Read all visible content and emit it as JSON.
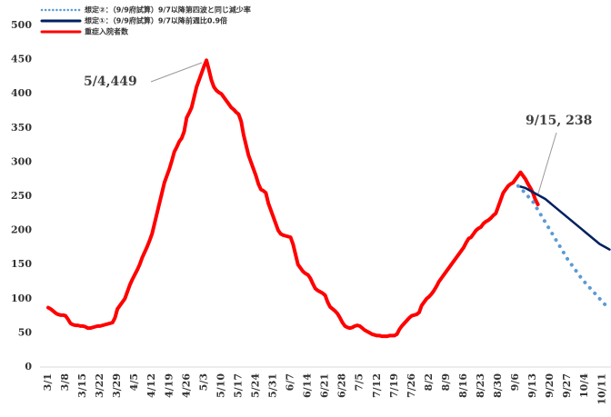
{
  "chart_data": {
    "type": "line",
    "categories": [
      "3/1",
      null,
      null,
      null,
      null,
      null,
      null,
      "3/8",
      null,
      null,
      null,
      null,
      null,
      null,
      "3/15",
      null,
      null,
      null,
      null,
      null,
      null,
      "3/22",
      null,
      null,
      null,
      null,
      null,
      null,
      "3/29",
      null,
      null,
      null,
      null,
      null,
      null,
      "4/5",
      null,
      null,
      null,
      null,
      null,
      null,
      "4/12",
      null,
      null,
      null,
      null,
      null,
      null,
      "4/19",
      null,
      null,
      null,
      null,
      null,
      null,
      "4/26",
      null,
      null,
      null,
      null,
      null,
      null,
      "5/3",
      null,
      null,
      null,
      null,
      null,
      null,
      "5/10",
      null,
      null,
      null,
      null,
      null,
      null,
      "5/17",
      null,
      null,
      null,
      null,
      null,
      null,
      "5/24",
      null,
      null,
      null,
      null,
      null,
      null,
      "5/31",
      null,
      null,
      null,
      null,
      null,
      null,
      "6/7",
      null,
      null,
      null,
      null,
      null,
      null,
      "6/14",
      null,
      null,
      null,
      null,
      null,
      null,
      "6/21",
      null,
      null,
      null,
      null,
      null,
      null,
      "6/28",
      null,
      null,
      null,
      null,
      null,
      null,
      "7/5",
      null,
      null,
      null,
      null,
      null,
      null,
      "7/12",
      null,
      null,
      null,
      null,
      null,
      null,
      "7/19",
      null,
      null,
      null,
      null,
      null,
      null,
      "7/26",
      null,
      null,
      null,
      null,
      null,
      null,
      "8/2",
      null,
      null,
      null,
      null,
      null,
      null,
      "8/9",
      null,
      null,
      null,
      null,
      null,
      null,
      "8/16",
      null,
      null,
      null,
      null,
      null,
      null,
      "8/23",
      null,
      null,
      null,
      null,
      null,
      null,
      "8/30",
      null,
      null,
      null,
      null,
      null,
      null,
      "9/6",
      null,
      null,
      null,
      null,
      null,
      null,
      "9/13",
      null,
      null,
      null,
      null,
      null,
      null,
      "9/20",
      null,
      null,
      null,
      null,
      null,
      null,
      "9/27",
      null,
      null,
      null,
      null,
      null,
      null,
      "10/4",
      null,
      null,
      null,
      null,
      null,
      null,
      "10/11",
      null,
      null,
      null
    ],
    "series": [
      {
        "name": "想定②：（9/9府試算）9/7以降第四波と同じ減少率",
        "color": "#5b9bd5",
        "dash": "dotted",
        "values": [
          null,
          null,
          null,
          null,
          null,
          null,
          null,
          null,
          null,
          null,
          null,
          null,
          null,
          null,
          null,
          null,
          null,
          null,
          null,
          null,
          null,
          null,
          null,
          null,
          null,
          null,
          null,
          null,
          null,
          null,
          null,
          null,
          null,
          null,
          null,
          null,
          null,
          null,
          null,
          null,
          null,
          null,
          null,
          null,
          null,
          null,
          null,
          null,
          null,
          null,
          null,
          null,
          null,
          null,
          null,
          null,
          null,
          null,
          null,
          null,
          null,
          null,
          null,
          null,
          null,
          null,
          null,
          null,
          null,
          null,
          null,
          null,
          null,
          null,
          null,
          null,
          null,
          null,
          null,
          null,
          null,
          null,
          null,
          null,
          null,
          null,
          null,
          null,
          null,
          null,
          null,
          null,
          null,
          null,
          null,
          null,
          null,
          null,
          null,
          null,
          null,
          null,
          null,
          null,
          null,
          null,
          null,
          null,
          null,
          null,
          null,
          null,
          null,
          null,
          null,
          null,
          null,
          null,
          null,
          null,
          null,
          null,
          null,
          null,
          null,
          null,
          null,
          null,
          null,
          null,
          null,
          null,
          null,
          null,
          null,
          null,
          null,
          null,
          null,
          null,
          null,
          null,
          null,
          null,
          null,
          null,
          null,
          null,
          null,
          null,
          null,
          null,
          null,
          null,
          null,
          null,
          null,
          null,
          null,
          null,
          null,
          null,
          null,
          null,
          null,
          null,
          null,
          null,
          null,
          null,
          null,
          null,
          null,
          null,
          null,
          null,
          null,
          null,
          null,
          null,
          null,
          null,
          null,
          null,
          null,
          null,
          null,
          null,
          null,
          null,
          265,
          262,
          258,
          254,
          250,
          246,
          242,
          236,
          230,
          224,
          218,
          212,
          206,
          200,
          194,
          188,
          182,
          176,
          170,
          164,
          158,
          153,
          148,
          143,
          138,
          133,
          128,
          124,
          120,
          116,
          112,
          108,
          104,
          100,
          96,
          92,
          89,
          86
        ]
      },
      {
        "name": "想定①：（9/9府試算）9/7以降前週比0.9倍",
        "color": "#002060",
        "dash": "solid",
        "values": [
          null,
          null,
          null,
          null,
          null,
          null,
          null,
          null,
          null,
          null,
          null,
          null,
          null,
          null,
          null,
          null,
          null,
          null,
          null,
          null,
          null,
          null,
          null,
          null,
          null,
          null,
          null,
          null,
          null,
          null,
          null,
          null,
          null,
          null,
          null,
          null,
          null,
          null,
          null,
          null,
          null,
          null,
          null,
          null,
          null,
          null,
          null,
          null,
          null,
          null,
          null,
          null,
          null,
          null,
          null,
          null,
          null,
          null,
          null,
          null,
          null,
          null,
          null,
          null,
          null,
          null,
          null,
          null,
          null,
          null,
          null,
          null,
          null,
          null,
          null,
          null,
          null,
          null,
          null,
          null,
          null,
          null,
          null,
          null,
          null,
          null,
          null,
          null,
          null,
          null,
          null,
          null,
          null,
          null,
          null,
          null,
          null,
          null,
          null,
          null,
          null,
          null,
          null,
          null,
          null,
          null,
          null,
          null,
          null,
          null,
          null,
          null,
          null,
          null,
          null,
          null,
          null,
          null,
          null,
          null,
          null,
          null,
          null,
          null,
          null,
          null,
          null,
          null,
          null,
          null,
          null,
          null,
          null,
          null,
          null,
          null,
          null,
          null,
          null,
          null,
          null,
          null,
          null,
          null,
          null,
          null,
          null,
          null,
          null,
          null,
          null,
          null,
          null,
          null,
          null,
          null,
          null,
          null,
          null,
          null,
          null,
          null,
          null,
          null,
          null,
          null,
          null,
          null,
          null,
          null,
          null,
          null,
          null,
          null,
          null,
          null,
          null,
          null,
          null,
          null,
          null,
          null,
          null,
          null,
          null,
          null,
          null,
          null,
          null,
          null,
          265,
          264,
          263,
          262,
          260,
          258,
          256,
          254,
          252,
          250,
          248,
          246,
          243,
          240,
          237,
          234,
          231,
          228,
          225,
          222,
          219,
          216,
          213,
          210,
          207,
          204,
          201,
          198,
          195,
          192,
          189,
          186,
          183,
          180,
          178,
          176,
          174,
          172
        ]
      },
      {
        "name": "重症入院者数",
        "color": "#ff0000",
        "dash": "solid",
        "values": [
          87,
          85,
          82,
          79,
          77,
          76,
          76,
          75,
          70,
          64,
          62,
          61,
          61,
          60,
          60,
          59,
          57,
          57,
          58,
          59,
          60,
          60,
          61,
          62,
          63,
          64,
          65,
          72,
          85,
          90,
          95,
          100,
          110,
          120,
          128,
          135,
          142,
          150,
          160,
          168,
          176,
          185,
          195,
          210,
          225,
          240,
          255,
          270,
          280,
          290,
          302,
          315,
          322,
          330,
          335,
          345,
          365,
          372,
          380,
          395,
          410,
          420,
          430,
          440,
          449,
          435,
          420,
          410,
          405,
          402,
          400,
          395,
          390,
          385,
          380,
          377,
          373,
          370,
          360,
          340,
          325,
          310,
          300,
          290,
          280,
          268,
          260,
          258,
          255,
          240,
          230,
          220,
          210,
          200,
          195,
          193,
          192,
          191,
          190,
          180,
          165,
          150,
          145,
          140,
          137,
          135,
          130,
          122,
          115,
          112,
          110,
          108,
          105,
          95,
          88,
          85,
          82,
          78,
          72,
          65,
          60,
          58,
          57,
          58,
          60,
          61,
          60,
          57,
          54,
          52,
          50,
          48,
          47,
          46,
          46,
          45,
          45,
          45,
          46,
          46,
          46,
          48,
          55,
          60,
          64,
          68,
          72,
          75,
          76,
          77,
          80,
          90,
          95,
          100,
          103,
          107,
          112,
          118,
          125,
          130,
          135,
          140,
          145,
          150,
          155,
          160,
          165,
          170,
          175,
          182,
          188,
          190,
          195,
          200,
          203,
          205,
          210,
          213,
          215,
          218,
          222,
          225,
          235,
          245,
          255,
          260,
          265,
          268,
          270,
          275,
          280,
          285,
          280,
          275,
          268,
          262,
          255,
          245,
          238,
          null,
          null,
          null,
          null,
          null,
          null,
          null,
          null,
          null,
          null,
          null,
          null,
          null,
          null,
          null,
          null,
          null,
          null,
          null,
          null,
          null,
          null,
          null,
          null,
          null,
          null,
          null,
          null,
          null
        ]
      }
    ],
    "ylim": [
      0,
      500
    ],
    "yticks": [
      0,
      50,
      100,
      150,
      200,
      250,
      300,
      350,
      400,
      450,
      500
    ],
    "grid": false,
    "legend": "top-left",
    "annotations": [
      "5/4,449",
      "9/15, 238"
    ]
  }
}
